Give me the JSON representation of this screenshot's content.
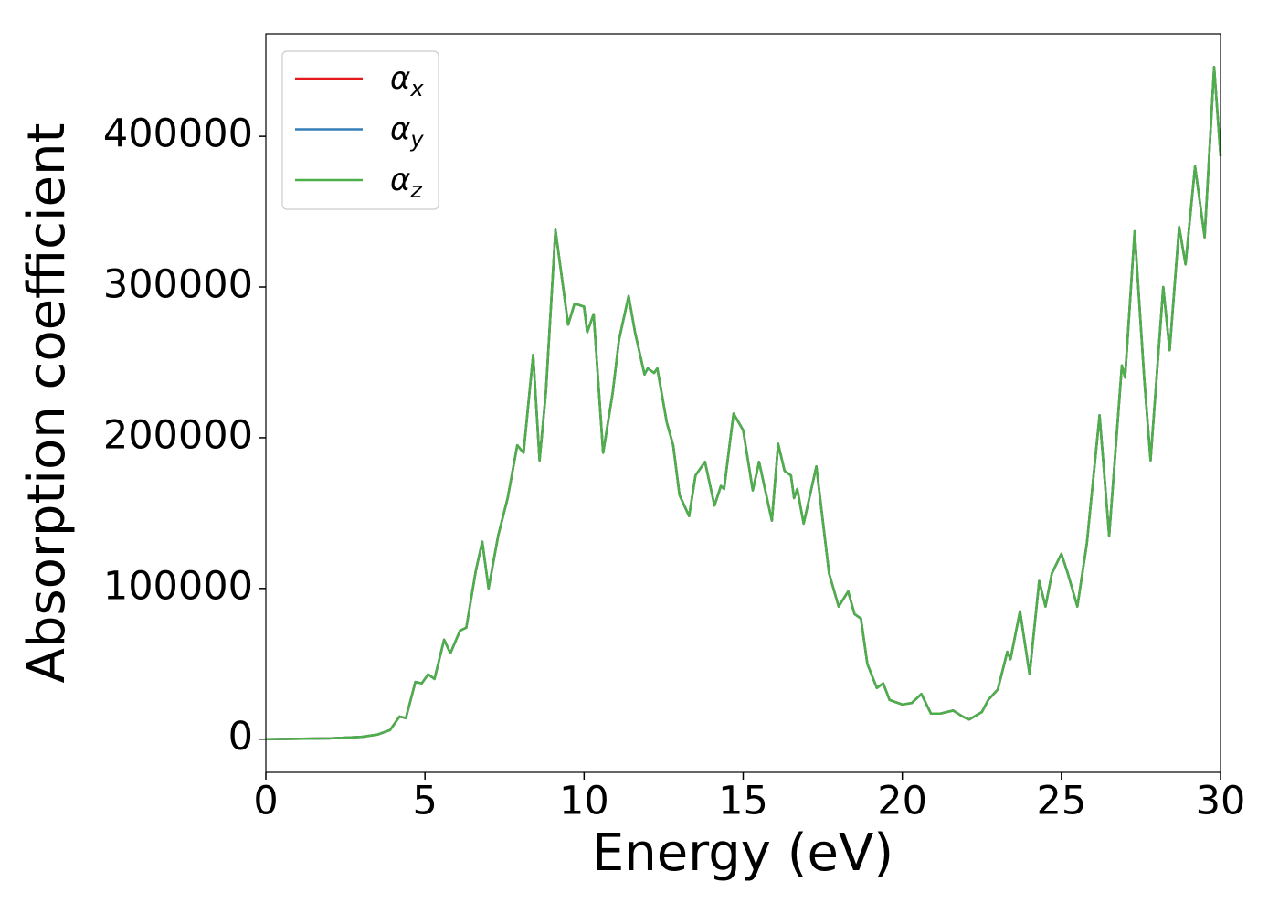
{
  "chart_data": {
    "type": "line",
    "xlabel": "Energy (eV)",
    "ylabel": "Absorption coefficient",
    "xlim": [
      0,
      30
    ],
    "ylim": [
      -22000,
      468000
    ],
    "xticks": [
      0,
      5,
      10,
      15,
      20,
      25,
      30
    ],
    "yticks": [
      0,
      100000,
      200000,
      300000,
      400000
    ],
    "legend": "upper left",
    "x": [
      0,
      2,
      3,
      3.5,
      3.9,
      4.2,
      4.4,
      4.7,
      4.9,
      5.1,
      5.3,
      5.6,
      5.8,
      6.1,
      6.3,
      6.6,
      6.8,
      7.0,
      7.3,
      7.6,
      7.9,
      8.1,
      8.4,
      8.6,
      8.8,
      9.1,
      9.5,
      9.7,
      10.0,
      10.1,
      10.3,
      10.6,
      10.9,
      11.1,
      11.4,
      11.6,
      11.9,
      12.0,
      12.2,
      12.3,
      12.6,
      12.8,
      13.0,
      13.3,
      13.5,
      13.8,
      14.1,
      14.3,
      14.4,
      14.6,
      14.7,
      15.0,
      15.3,
      15.5,
      15.9,
      16.1,
      16.3,
      16.5,
      16.6,
      16.7,
      16.9,
      17.3,
      17.7,
      18.0,
      18.3,
      18.5,
      18.7,
      18.9,
      19.2,
      19.4,
      19.6,
      20.0,
      20.3,
      20.6,
      20.9,
      21.2,
      21.6,
      21.9,
      22.1,
      22.5,
      22.7,
      23.0,
      23.3,
      23.4,
      23.7,
      24.0,
      24.3,
      24.5,
      24.7,
      25.0,
      25.2,
      25.5,
      25.8,
      26.2,
      26.5,
      26.9,
      27.0,
      27.3,
      27.6,
      27.8,
      28.2,
      28.4,
      28.7,
      28.9,
      29.2,
      29.5,
      29.8,
      30.0
    ],
    "series": [
      {
        "name": "αx",
        "color": "#e41a1c",
        "values": [
          0,
          500,
          1500,
          3000,
          6000,
          15000,
          14000,
          38000,
          37000,
          43000,
          40000,
          66000,
          57000,
          72000,
          74000,
          112000,
          131000,
          100000,
          135000,
          160000,
          195000,
          190000,
          255000,
          185000,
          230000,
          338000,
          275000,
          289000,
          287000,
          270000,
          282000,
          190000,
          230000,
          265000,
          294000,
          270000,
          242000,
          246000,
          243000,
          246000,
          210000,
          195000,
          162000,
          148000,
          175000,
          184000,
          155000,
          168000,
          166000,
          200000,
          216000,
          205000,
          165000,
          184000,
          145000,
          196000,
          178000,
          175000,
          160000,
          166000,
          143000,
          181000,
          110000,
          88000,
          98000,
          83000,
          80000,
          50000,
          34000,
          37000,
          26000,
          23000,
          24000,
          30000,
          17000,
          17000,
          19000,
          15000,
          13000,
          18000,
          26000,
          33000,
          58000,
          53000,
          85000,
          43000,
          105000,
          88000,
          110000,
          123000,
          110000,
          88000,
          130000,
          215000,
          135000,
          248000,
          240000,
          337000,
          240000,
          185000,
          300000,
          258000,
          340000,
          315000,
          380000,
          333000,
          446000,
          387000
        ]
      },
      {
        "name": "αy",
        "color": "#377eb8",
        "values": [
          0,
          500,
          1500,
          3000,
          6000,
          15000,
          14000,
          38000,
          37000,
          43000,
          40000,
          66000,
          57000,
          72000,
          74000,
          112000,
          131000,
          100000,
          135000,
          160000,
          195000,
          190000,
          255000,
          185000,
          230000,
          338000,
          275000,
          289000,
          287000,
          270000,
          282000,
          190000,
          230000,
          265000,
          294000,
          270000,
          242000,
          246000,
          243000,
          246000,
          210000,
          195000,
          162000,
          148000,
          175000,
          184000,
          155000,
          168000,
          166000,
          200000,
          216000,
          205000,
          165000,
          184000,
          145000,
          196000,
          178000,
          175000,
          160000,
          166000,
          143000,
          181000,
          110000,
          88000,
          98000,
          83000,
          80000,
          50000,
          34000,
          37000,
          26000,
          23000,
          24000,
          30000,
          17000,
          17000,
          19000,
          15000,
          13000,
          18000,
          26000,
          33000,
          58000,
          53000,
          85000,
          43000,
          105000,
          88000,
          110000,
          123000,
          110000,
          88000,
          130000,
          215000,
          135000,
          248000,
          240000,
          337000,
          240000,
          185000,
          300000,
          258000,
          340000,
          315000,
          380000,
          333000,
          446000,
          387000
        ]
      },
      {
        "name": "αz",
        "color": "#4daf4a",
        "values": [
          0,
          500,
          1500,
          3000,
          6000,
          15000,
          14000,
          38000,
          37000,
          43000,
          40000,
          66000,
          57000,
          72000,
          74000,
          112000,
          131000,
          100000,
          135000,
          160000,
          195000,
          190000,
          255000,
          185000,
          230000,
          338000,
          275000,
          289000,
          287000,
          270000,
          282000,
          190000,
          230000,
          265000,
          294000,
          270000,
          242000,
          246000,
          243000,
          246000,
          210000,
          195000,
          162000,
          148000,
          175000,
          184000,
          155000,
          168000,
          166000,
          200000,
          216000,
          205000,
          165000,
          184000,
          145000,
          196000,
          178000,
          175000,
          160000,
          166000,
          143000,
          181000,
          110000,
          88000,
          98000,
          83000,
          80000,
          50000,
          34000,
          37000,
          26000,
          23000,
          24000,
          30000,
          17000,
          17000,
          19000,
          15000,
          13000,
          18000,
          26000,
          33000,
          58000,
          53000,
          85000,
          43000,
          105000,
          88000,
          110000,
          123000,
          110000,
          88000,
          130000,
          215000,
          135000,
          248000,
          240000,
          337000,
          240000,
          185000,
          300000,
          258000,
          340000,
          315000,
          380000,
          333000,
          446000,
          387000
        ]
      }
    ]
  }
}
